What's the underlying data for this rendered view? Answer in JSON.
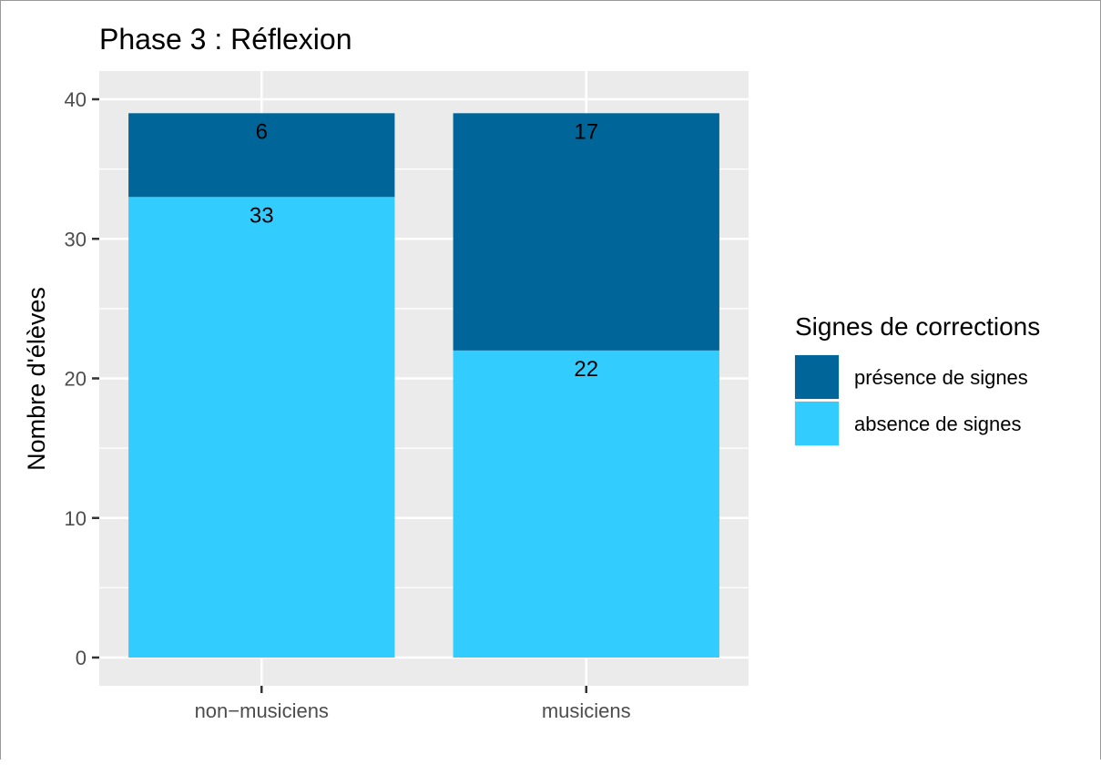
{
  "chart_data": {
    "type": "bar",
    "stacked": true,
    "title": "Phase 3 : Réflexion",
    "xlabel": "",
    "ylabel": "Nombre d'élèves",
    "categories": [
      "non−musiciens",
      "musiciens"
    ],
    "ylim": [
      0,
      40
    ],
    "yticks": [
      0,
      10,
      20,
      30,
      40
    ],
    "grid": true,
    "legend": {
      "title": "Signes de corrections",
      "position": "right",
      "entries": [
        "présence de signes",
        "absence de signes"
      ]
    },
    "series": [
      {
        "name": "absence de signes",
        "values": [
          33,
          22
        ],
        "color": "#33CCFF"
      },
      {
        "name": "présence de signes",
        "values": [
          6,
          17
        ],
        "color": "#006699"
      }
    ],
    "colors": {
      "panel": "#EBEBEB",
      "grid": "#FFFFFF",
      "axis_text": "#4D4D4D",
      "tick": "#333333"
    }
  }
}
